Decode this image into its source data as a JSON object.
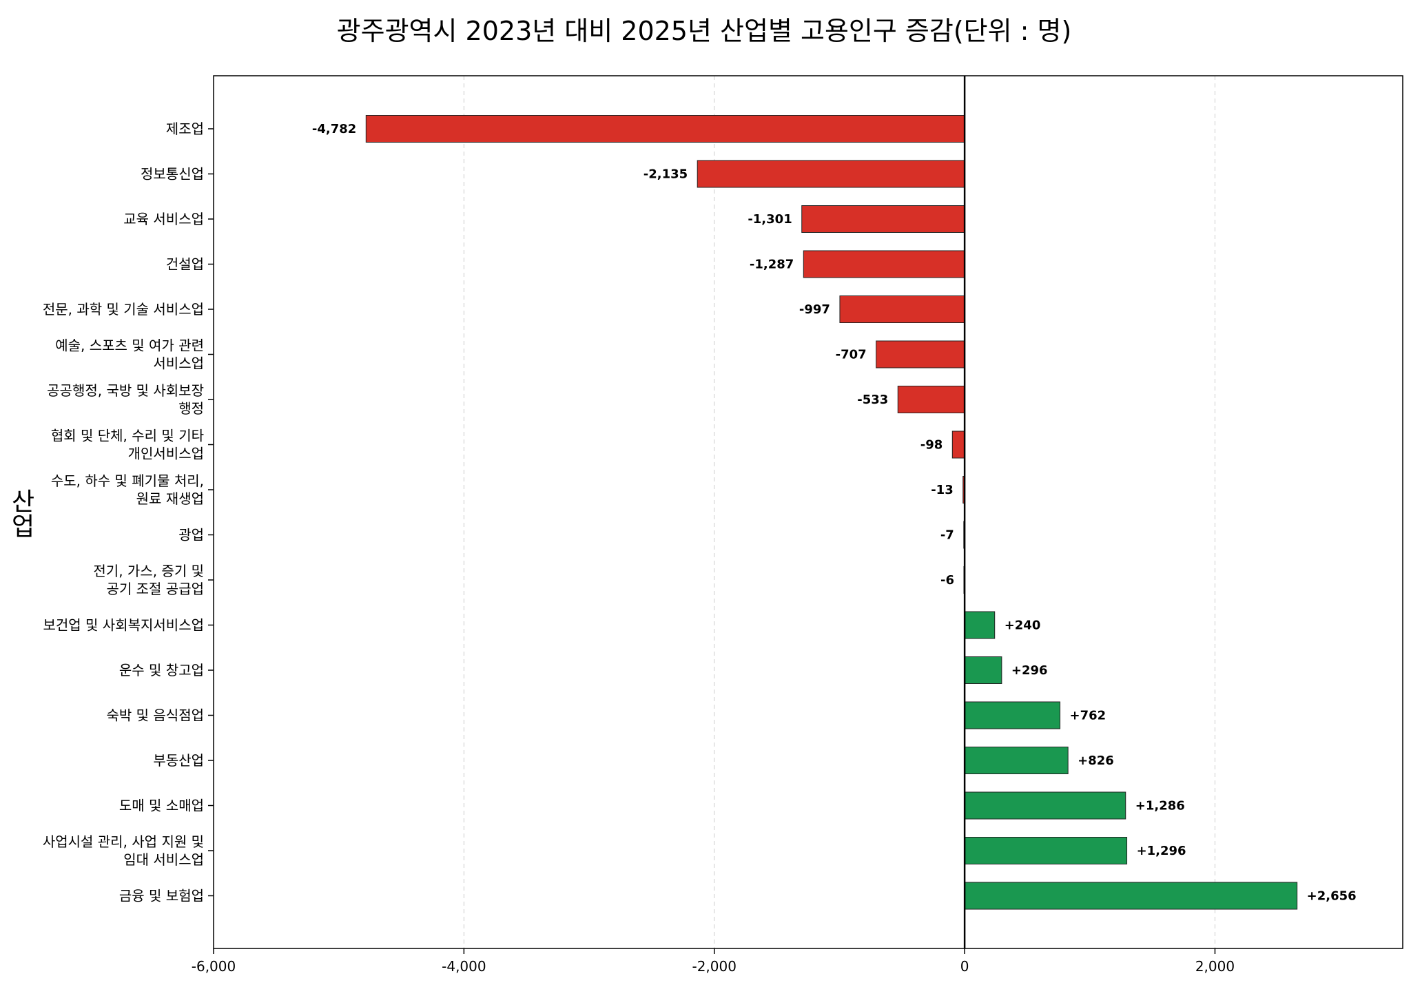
{
  "chart_data": {
    "type": "bar",
    "orientation": "horizontal",
    "title": "광주광역시 2023년 대비 2025년 산업별 고용인구 증감(단위 : 명)",
    "ylabel": "산업",
    "xlabel": "",
    "xlim": [
      -6000,
      3500
    ],
    "xticks": [
      -6000,
      -4000,
      -2000,
      0,
      2000
    ],
    "xtick_labels": [
      "-6,000",
      "-4,000",
      "-2,000",
      "0",
      "2,000"
    ],
    "grid": "x-dashed",
    "colors": {
      "negative": "#d73027",
      "positive": "#1a9850",
      "edge": "#222222"
    },
    "categories": [
      [
        "제조업"
      ],
      [
        "정보통신업"
      ],
      [
        "교육 서비스업"
      ],
      [
        "건설업"
      ],
      [
        "전문, 과학 및 기술 서비스업"
      ],
      [
        "예술, 스포츠 및 여가 관련",
        "서비스업"
      ],
      [
        "공공행정, 국방 및 사회보장",
        "행정"
      ],
      [
        "협회 및 단체, 수리 및 기타",
        "개인서비스업"
      ],
      [
        "수도, 하수 및 폐기물 처리,",
        "원료 재생업"
      ],
      [
        "광업"
      ],
      [
        "전기, 가스, 증기 및",
        "공기 조절 공급업"
      ],
      [
        "보건업 및 사회복지서비스업"
      ],
      [
        "운수 및 창고업"
      ],
      [
        "숙박 및 음식점업"
      ],
      [
        "부동산업"
      ],
      [
        "도매 및 소매업"
      ],
      [
        "사업시설 관리, 사업 지원 및",
        "임대 서비스업"
      ],
      [
        "금융 및 보험업"
      ]
    ],
    "values": [
      -4782,
      -2135,
      -1301,
      -1287,
      -997,
      -707,
      -533,
      -98,
      -13,
      -7,
      -6,
      240,
      296,
      762,
      826,
      1286,
      1296,
      2656
    ],
    "value_labels": [
      "-4,782",
      "-2,135",
      "-1,301",
      "-1,287",
      "-997",
      "-707",
      "-533",
      "-98",
      "-13",
      "-7",
      "-6",
      "+240",
      "+296",
      "+762",
      "+826",
      "+1,286",
      "+1,296",
      "+2,656"
    ]
  }
}
